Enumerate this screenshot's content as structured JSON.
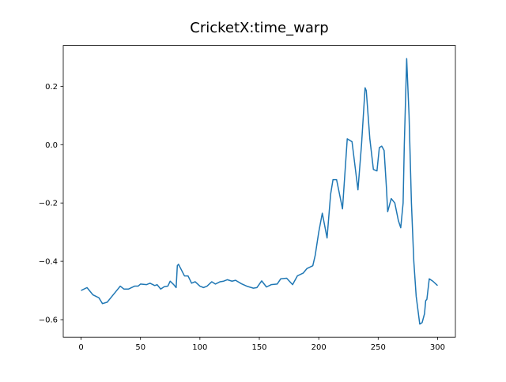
{
  "chart_data": {
    "type": "line",
    "title": "CricketX:time_warp",
    "x": [
      0,
      5,
      10,
      15,
      18,
      22,
      26,
      30,
      33,
      36,
      40,
      45,
      48,
      50,
      55,
      58,
      62,
      64,
      67,
      70,
      73,
      75,
      78,
      80,
      81,
      82,
      87,
      90,
      93,
      96,
      100,
      103,
      106,
      110,
      113,
      117,
      120,
      123,
      127,
      130,
      135,
      140,
      145,
      148,
      152,
      156,
      160,
      165,
      168,
      173,
      178,
      182,
      187,
      190,
      195,
      197,
      200,
      203,
      207,
      210,
      212,
      215,
      220,
      222,
      224,
      228,
      233,
      236,
      239,
      240,
      243,
      246,
      249,
      251,
      253,
      255,
      257,
      258,
      261,
      264,
      267,
      269,
      271,
      272,
      274,
      276,
      278,
      280,
      282,
      285,
      287,
      289,
      290,
      291,
      293,
      296,
      300
    ],
    "series": [
      {
        "color": "#1f77b4",
        "values": [
          -0.5,
          -0.49,
          -0.515,
          -0.525,
          -0.545,
          -0.54,
          -0.52,
          -0.5,
          -0.485,
          -0.495,
          -0.495,
          -0.485,
          -0.485,
          -0.478,
          -0.48,
          -0.475,
          -0.483,
          -0.48,
          -0.495,
          -0.487,
          -0.485,
          -0.468,
          -0.48,
          -0.49,
          -0.415,
          -0.41,
          -0.45,
          -0.45,
          -0.475,
          -0.47,
          -0.485,
          -0.49,
          -0.485,
          -0.47,
          -0.478,
          -0.47,
          -0.468,
          -0.463,
          -0.468,
          -0.465,
          -0.477,
          -0.486,
          -0.492,
          -0.49,
          -0.467,
          -0.488,
          -0.48,
          -0.478,
          -0.46,
          -0.458,
          -0.48,
          -0.45,
          -0.44,
          -0.425,
          -0.415,
          -0.38,
          -0.3,
          -0.235,
          -0.32,
          -0.17,
          -0.12,
          -0.12,
          -0.22,
          -0.1,
          0.02,
          0.01,
          -0.155,
          0.0,
          0.195,
          0.185,
          0.02,
          -0.085,
          -0.09,
          -0.01,
          -0.005,
          -0.02,
          -0.15,
          -0.23,
          -0.185,
          -0.2,
          -0.26,
          -0.285,
          -0.2,
          0.0,
          0.295,
          0.1,
          -0.2,
          -0.4,
          -0.52,
          -0.615,
          -0.61,
          -0.58,
          -0.535,
          -0.53,
          -0.46,
          -0.468,
          -0.483
        ]
      }
    ],
    "xlim": [
      -15,
      315
    ],
    "xticks": [
      0,
      50,
      100,
      150,
      200,
      250,
      300
    ],
    "ylim": [
      -0.66,
      0.34
    ],
    "yticks": [
      {
        "value": -0.6,
        "label": "−0.6"
      },
      {
        "value": -0.4,
        "label": "−0.4"
      },
      {
        "value": -0.2,
        "label": "−0.2"
      },
      {
        "value": 0,
        "label": "0.0"
      },
      {
        "value": 0.2,
        "label": "0.2"
      }
    ]
  }
}
